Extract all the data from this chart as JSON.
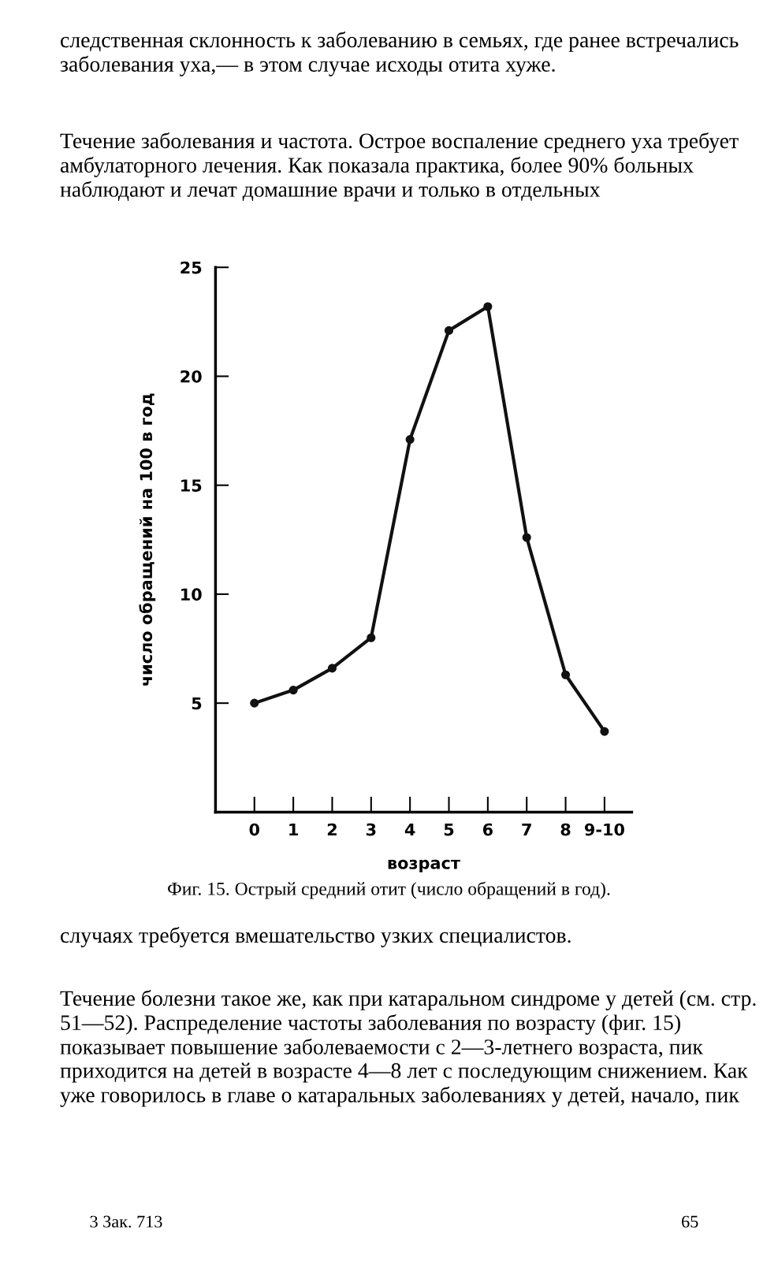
{
  "chart_data": {
    "type": "line",
    "title": "Фиг. 15. Острый средний отит (число обращений в год).",
    "xlabel": "возраст",
    "ylabel": "число обращений на 100 в год",
    "categories": [
      "0",
      "1",
      "2",
      "3",
      "4",
      "5",
      "6",
      "7",
      "8",
      "9-10"
    ],
    "series": [
      {
        "color": "#111111",
        "values": [
          5.0,
          5.6,
          6.6,
          8.0,
          17.1,
          22.1,
          23.2,
          12.6,
          6.3,
          3.7
        ]
      }
    ],
    "ylim": [
      0,
      25
    ],
    "yticks": [
      5,
      10,
      15,
      20,
      25
    ],
    "grid": false,
    "legend": false,
    "marker": "circle",
    "line_style": "solid",
    "annotations": [
      "следственная склонность к заболеванию в семьях, где ранее встречались заболевания уха,— в этом случае исходы отита хуже.",
      "Течение заболевания и частота. Острое воспаление среднего уха требует амбулаторного лечения. Как показала практика, более 90% больных наблюдают и лечат домашние врачи и только в отдельных",
      "случаях требуется вмешательство узких специалистов.",
      "Течение болезни такое же, как при катаральном синдроме у детей (см. стр. 51—52). Распределение частоты заболевания по возрасту (фиг. 15) показывает повышение заболеваемости с 2—3-летнего возраста, пик приходится на детей в возрасте 4—8 лет с последующим снижением. Как уже говорилось в главе о катаральных заболеваниях у детей, начало, пик",
      "3 Зак. 713",
      "65"
    ]
  }
}
